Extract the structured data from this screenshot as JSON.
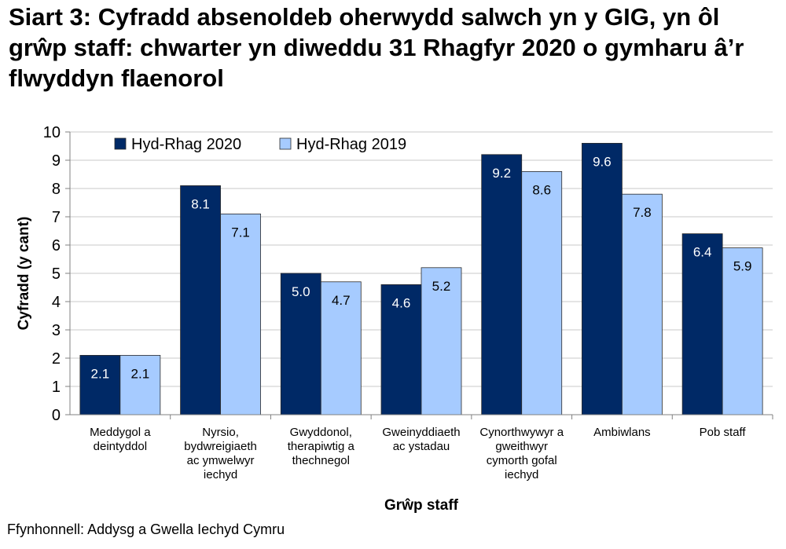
{
  "chart_data": {
    "type": "bar",
    "title": "Siart 3: Cyfradd absenoldeb oherwydd salwch yn y GIG, yn ôl grŵp staff: chwarter yn diweddu 31 Rhagfyr 2020 o gymharu â’r flwyddyn flaenorol",
    "xlabel": "Grŵp staff",
    "ylabel": "Cyfradd (y cant)",
    "ylim": [
      0,
      10
    ],
    "yticks": [
      "0",
      "1",
      "2",
      "3",
      "4",
      "5",
      "6",
      "7",
      "8",
      "9",
      "10"
    ],
    "grid": true,
    "legend_position": "top-left",
    "categories": [
      [
        "Meddygol a",
        "deintyddol"
      ],
      [
        "Nyrsio,",
        "bydwreigiaeth",
        "ac ymwelwyr",
        "iechyd"
      ],
      [
        "Gwyddonol,",
        "therapiwtig a",
        "thechnegol"
      ],
      [
        "Gweinyddiaeth",
        "ac ystadau"
      ],
      [
        "Cynorthwywyr a",
        "gweithwyr",
        "cymorth gofal",
        "iechyd"
      ],
      [
        "Ambiwlans"
      ],
      [
        "Pob staff"
      ]
    ],
    "series": [
      {
        "name": "Hyd-Rhag 2020",
        "color": "#002966",
        "label_color": "#ffffff",
        "values": [
          2.1,
          8.1,
          5.0,
          4.6,
          9.2,
          9.6,
          6.4
        ],
        "labels": [
          "2.1",
          "8.1",
          "5.0",
          "4.6",
          "9.2",
          "9.6",
          "6.4"
        ]
      },
      {
        "name": "Hyd-Rhag 2019",
        "color": "#a6cbff",
        "label_color": "#000000",
        "values": [
          2.1,
          7.1,
          4.7,
          5.2,
          8.6,
          7.8,
          5.9
        ],
        "labels": [
          "2.1",
          "7.1",
          "4.7",
          "5.2",
          "8.6",
          "7.8",
          "5.9"
        ]
      }
    ]
  },
  "source": "Ffynhonnell: Addysg a Gwella Iechyd Cymru"
}
